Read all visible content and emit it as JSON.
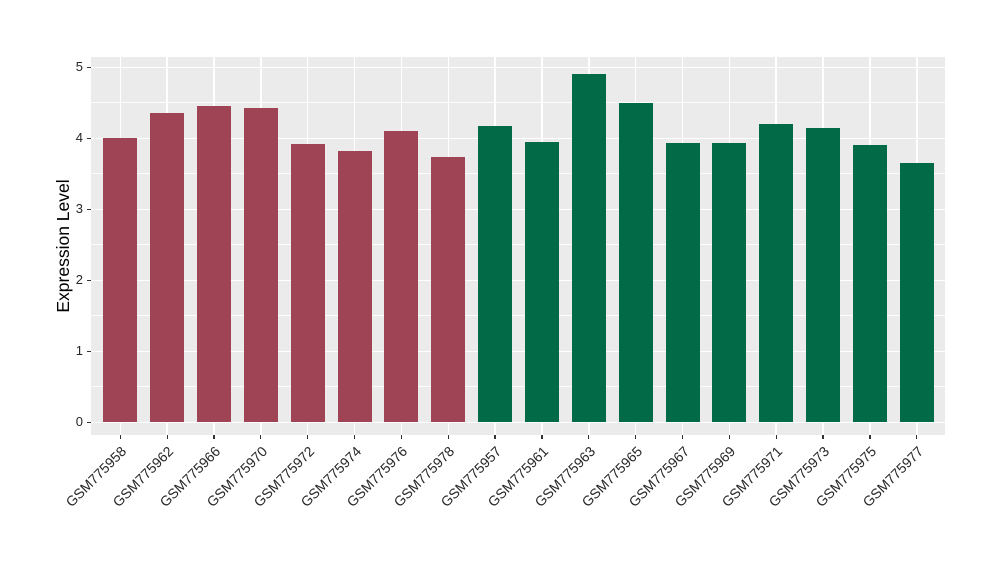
{
  "chart_data": {
    "type": "bar",
    "title": "",
    "xlabel": "",
    "ylabel": "Expression Level",
    "ylim": [
      0,
      5
    ],
    "yticks": [
      0,
      1,
      2,
      3,
      4,
      5
    ],
    "minor_gridlines": [
      0.5,
      1.5,
      2.5,
      3.5,
      4.5
    ],
    "grid": "on",
    "legend_position": "none",
    "categories": [
      "GSM775958",
      "GSM775962",
      "GSM775966",
      "GSM775970",
      "GSM775972",
      "GSM775974",
      "GSM775976",
      "GSM775978",
      "GSM775957",
      "GSM775961",
      "GSM775963",
      "GSM775965",
      "GSM775967",
      "GSM775969",
      "GSM775971",
      "GSM775973",
      "GSM775975",
      "GSM775977"
    ],
    "values": [
      4.0,
      4.35,
      4.45,
      4.42,
      3.92,
      3.82,
      4.1,
      3.73,
      4.17,
      3.95,
      4.9,
      4.5,
      3.93,
      3.93,
      4.2,
      4.15,
      3.9,
      3.65
    ],
    "group_of_bar": [
      1,
      1,
      1,
      1,
      1,
      1,
      1,
      1,
      2,
      2,
      2,
      2,
      2,
      2,
      2,
      2,
      2,
      2
    ],
    "groups": [
      {
        "id": 1,
        "color": "#9E4454"
      },
      {
        "id": 2,
        "color": "#036A48"
      }
    ],
    "colors": {
      "panel_background": "#EBEBEB",
      "gridline": "#FFFFFF",
      "tick_mark": "#333333",
      "tick_text": "#262626",
      "axis_title_text": "#000000",
      "figure_background": "#FFFFFF"
    }
  }
}
